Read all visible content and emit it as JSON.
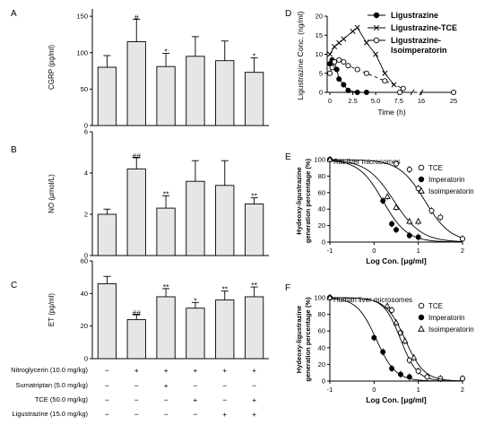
{
  "chart_data": [
    {
      "panel": "A",
      "type": "bar",
      "ylabel": "CGRP (pg/ml)",
      "ylim": [
        0,
        160
      ],
      "yticks": [
        "0",
        "50",
        "100",
        "150"
      ],
      "values": [
        80,
        115,
        81,
        95,
        89,
        73
      ],
      "errors": [
        16,
        31,
        18,
        27,
        27,
        20
      ],
      "annotations": [
        "",
        "#",
        "*",
        "",
        "",
        "*"
      ]
    },
    {
      "panel": "B",
      "type": "bar",
      "ylabel": "NO (μmol/L)",
      "ylim": [
        0,
        6
      ],
      "yticks": [
        "0",
        "2",
        "4",
        "6"
      ],
      "values": [
        2.0,
        4.2,
        2.3,
        3.6,
        3.4,
        2.5
      ],
      "errors": [
        0.25,
        0.55,
        0.6,
        1.0,
        1.2,
        0.3
      ],
      "annotations": [
        "",
        "##",
        "**",
        "",
        "",
        "**"
      ]
    },
    {
      "panel": "C",
      "type": "bar",
      "ylabel": "ET (pg/ml)",
      "ylim": [
        0,
        60
      ],
      "yticks": [
        "0",
        "20",
        "40",
        "60"
      ],
      "values": [
        46,
        24,
        38,
        31,
        36,
        38
      ],
      "errors": [
        4.5,
        3,
        5,
        3.5,
        5.5,
        6
      ],
      "annotations": [
        "",
        "##",
        "**",
        "*",
        "**",
        "**"
      ]
    },
    {
      "panel": "D",
      "type": "line",
      "xlabel": "Time (h)",
      "ylabel": "Ligustrazine Conc. (ng/ml)",
      "ylim": [
        0,
        20
      ],
      "xticks": [
        "0",
        "2.5",
        "5.0",
        "7.5",
        "16",
        "25"
      ],
      "yticks": [
        "0",
        "5",
        "10",
        "15",
        "20"
      ],
      "series": [
        {
          "name": "Ligustrazine",
          "marker": "filled-circle",
          "x": [
            0,
            0.25,
            0.5,
            0.75,
            1,
            1.5,
            2,
            3,
            4
          ],
          "y": [
            7.5,
            8.5,
            8,
            6,
            3.5,
            2,
            0.5,
            0,
            0
          ]
        },
        {
          "name": "Ligustrazine-TCE",
          "marker": "x",
          "x": [
            0,
            0.5,
            1,
            1.5,
            2.5,
            3,
            4,
            5,
            6,
            7
          ],
          "y": [
            10,
            12,
            13,
            14,
            16,
            17,
            13,
            10,
            5,
            2
          ]
        },
        {
          "name": "Ligustrazine-Isoimperatorin",
          "marker": "open-circle",
          "x": [
            0,
            0.25,
            0.5,
            1,
            1.5,
            2,
            3,
            4,
            6,
            8,
            10,
            25
          ],
          "y": [
            5,
            6.5,
            8,
            8.5,
            8,
            7,
            6,
            5,
            3,
            1,
            0,
            0
          ]
        }
      ]
    },
    {
      "panel": "E",
      "type": "scatter",
      "title": "Rat liver  microsomes",
      "xlabel": "Log Con. [μg/ml]",
      "ylabel": "Hydeoxy-ligustrazine generation percentage (%)",
      "xlim": [
        -1,
        2
      ],
      "ylim": [
        0,
        100
      ],
      "xticks": [
        "-1",
        "0",
        "1",
        "2"
      ],
      "yticks": [
        "0",
        "20",
        "40",
        "60",
        "80",
        "100"
      ],
      "series": [
        {
          "name": "TCE",
          "marker": "open-circle",
          "x": [
            -1,
            0.5,
            0.8,
            1,
            1.3,
            1.5,
            2
          ],
          "y": [
            100,
            95,
            88,
            65,
            38,
            30,
            4
          ]
        },
        {
          "name": "Imperatorin",
          "marker": "filled-circle",
          "x": [
            -1,
            0.2,
            0.4,
            0.5,
            0.8,
            1
          ],
          "y": [
            100,
            50,
            22,
            15,
            8,
            6
          ]
        },
        {
          "name": "Isoimperatorin",
          "marker": "open-triangle",
          "x": [
            -1,
            0.3,
            0.5,
            0.8,
            1
          ],
          "y": [
            100,
            55,
            42,
            25,
            25
          ]
        }
      ]
    },
    {
      "panel": "F",
      "type": "scatter",
      "title": "Human liver  microsomes",
      "xlabel": "Log Con. [μg/ml]",
      "ylabel": "Hydeoxy-ligustrazine generation percentage (%)",
      "xlim": [
        -1,
        2
      ],
      "ylim": [
        0,
        100
      ],
      "xticks": [
        "-1",
        "0",
        "1",
        "2"
      ],
      "yticks": [
        "0",
        "20",
        "40",
        "60",
        "80",
        "100"
      ],
      "series": [
        {
          "name": "TCE",
          "marker": "open-circle",
          "x": [
            -1,
            0.4,
            0.6,
            0.8,
            1,
            1.2,
            1.5,
            2
          ],
          "y": [
            100,
            85,
            58,
            25,
            12,
            5,
            3,
            3
          ]
        },
        {
          "name": "Imperatorin",
          "marker": "filled-circle",
          "x": [
            -1,
            0,
            0.2,
            0.4,
            0.6,
            0.8
          ],
          "y": [
            100,
            52,
            35,
            15,
            8,
            5
          ]
        },
        {
          "name": "Isoimperatorin",
          "marker": "open-triangle",
          "x": [
            -1,
            0.3,
            0.5,
            0.7,
            0.9
          ],
          "y": [
            100,
            90,
            70,
            48,
            28
          ]
        }
      ]
    }
  ],
  "treatment_table": {
    "rows": [
      {
        "label": "Nitroglycerin (10.0 mg/kg)",
        "marks": [
          "−",
          "+",
          "+",
          "+",
          "+",
          "+"
        ]
      },
      {
        "label": "Sumatriptan (5.0 mg/kg)",
        "marks": [
          "−",
          "−",
          "+",
          "−",
          "−",
          "−"
        ]
      },
      {
        "label": "TCE (50.0 mg/kg)",
        "marks": [
          "−",
          "−",
          "−",
          "+",
          "−",
          "+"
        ]
      },
      {
        "label": "Ligustrazine (15.0 mg/kg)",
        "marks": [
          "−",
          "−",
          "−",
          "−",
          "+",
          "+"
        ]
      }
    ]
  }
}
